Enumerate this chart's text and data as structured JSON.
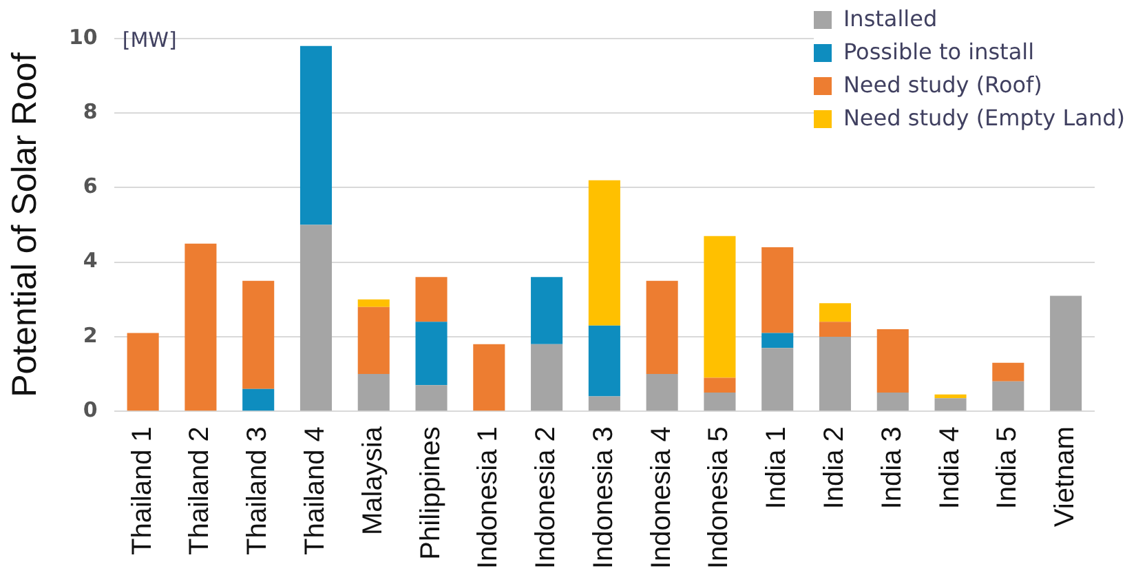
{
  "chart_data": {
    "type": "bar",
    "stacked": true,
    "ylabel": "Potential of Solar Roof",
    "annotations": [
      "[MW]"
    ],
    "categories": [
      "Thailand 1",
      "Thailand 2",
      "Thailand 3",
      "Thailand 4",
      "Malaysia",
      "Philippines",
      "Indonesia 1",
      "Indonesia 2",
      "Indonesia 3",
      "Indonesia 4",
      "Indonesia 5",
      "India 1",
      "India 2",
      "India 3",
      "India 4",
      "India 5",
      "Vietnam"
    ],
    "series": [
      {
        "name": "Installed",
        "color": "#a5a5a5",
        "values": [
          0,
          0,
          0,
          5.0,
          1.0,
          0.7,
          0,
          1.8,
          0.4,
          1.0,
          0.5,
          1.7,
          2.0,
          0.5,
          0.35,
          0.8,
          3.1
        ]
      },
      {
        "name": "Possible to install",
        "color": "#0e8dbf",
        "values": [
          0,
          0,
          0.6,
          4.8,
          0,
          1.7,
          0,
          1.8,
          1.9,
          0,
          0,
          0.4,
          0,
          0,
          0,
          0,
          0
        ]
      },
      {
        "name": "Need study (Roof)",
        "color": "#ed7d31",
        "values": [
          2.1,
          4.5,
          2.9,
          0,
          1.8,
          1.2,
          1.8,
          0,
          0,
          2.5,
          0.4,
          2.3,
          0.4,
          1.7,
          0,
          0.5,
          0
        ]
      },
      {
        "name": "Need study (Empty Land)",
        "color": "#ffc000",
        "values": [
          0,
          0,
          0,
          0,
          0.2,
          0,
          0,
          0,
          3.9,
          0,
          3.8,
          0,
          0.5,
          0,
          0.1,
          0,
          0
        ]
      }
    ],
    "ylim": [
      0,
      10
    ],
    "yticks": [
      0,
      2,
      4,
      6,
      8,
      10
    ],
    "grid": "y",
    "legend": "top right"
  }
}
